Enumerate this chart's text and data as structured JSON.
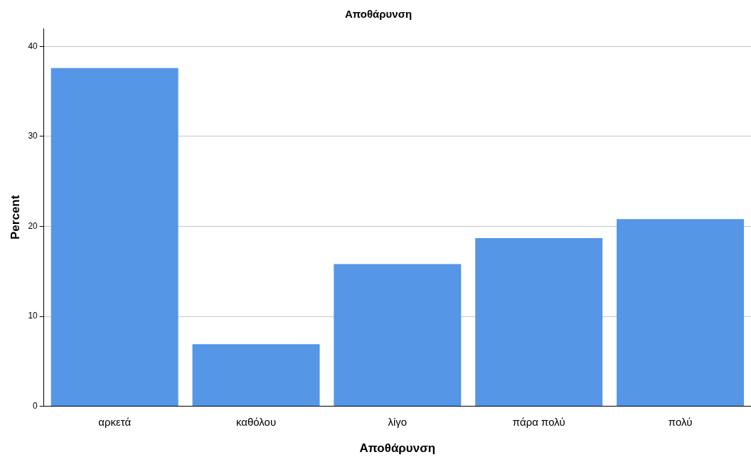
{
  "chart_data": {
    "type": "bar",
    "title": "Αποθάρυνση",
    "xlabel": "Αποθάρυνση",
    "ylabel": "Percent",
    "categories": [
      "αρκετά",
      "καθόλου",
      "λίγο",
      "πάρα πολύ",
      "πολύ"
    ],
    "values": [
      37.6,
      6.9,
      15.8,
      18.7,
      20.8
    ],
    "color": "#5596e6",
    "ylim": [
      0,
      42
    ],
    "yticks": [
      0,
      10,
      20,
      30,
      40
    ],
    "grid": "y",
    "legend": false
  }
}
